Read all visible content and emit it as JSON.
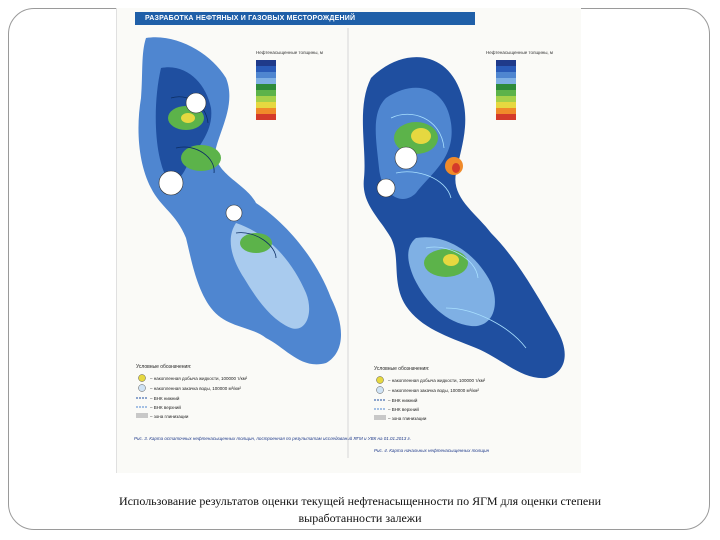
{
  "slide": {
    "figure_header": "РАЗРАБОТКА НЕФТЯНЫХ И ГАЗОВЫХ МЕСТОРОЖДЕНИЙ",
    "caption": "Использование результатов оценки текущей нефтенасыщенности по ЯГМ для оценки степени выработанности залежи"
  },
  "left_map": {
    "legend_title": "Нефтенасыщенные толщины, м",
    "legend_heading": "Условные обозначения:",
    "legend_items": [
      "– накопленная добыча жидкости, 100000 т/км²",
      "– накопленная закачка воды, 100000 м³/км²",
      "– ВНК нижний",
      "– ВНК верхний",
      "– зона глинизации"
    ],
    "figure_caption": "Рис. 3. Карта остаточных нефтенасыщенных толщин, построенная по результатам исследований ЯГМ и УВК на 01.01.2013 г."
  },
  "right_map": {
    "legend_title": "Нефтенасыщенные толщины, м",
    "legend_heading": "Условные обозначения:",
    "legend_items": [
      "– накопленная добыча жидкости, 100000 т/км²",
      "– накопленная закачка воды, 100000 м³/км²",
      "– ВНК нижний",
      "– ВНК верхний",
      "– зона глинизации"
    ],
    "figure_caption": "Рис. 4. Карта начальных нефтенасыщенных толщин"
  },
  "colors": {
    "header_blue": "#1f5fa8",
    "deep_blue": "#1f4fa0",
    "mid_blue": "#4f86d0",
    "light_blue": "#a9cbee",
    "green": "#5cb34a",
    "yellow": "#e6d840",
    "red": "#d43a2a"
  }
}
